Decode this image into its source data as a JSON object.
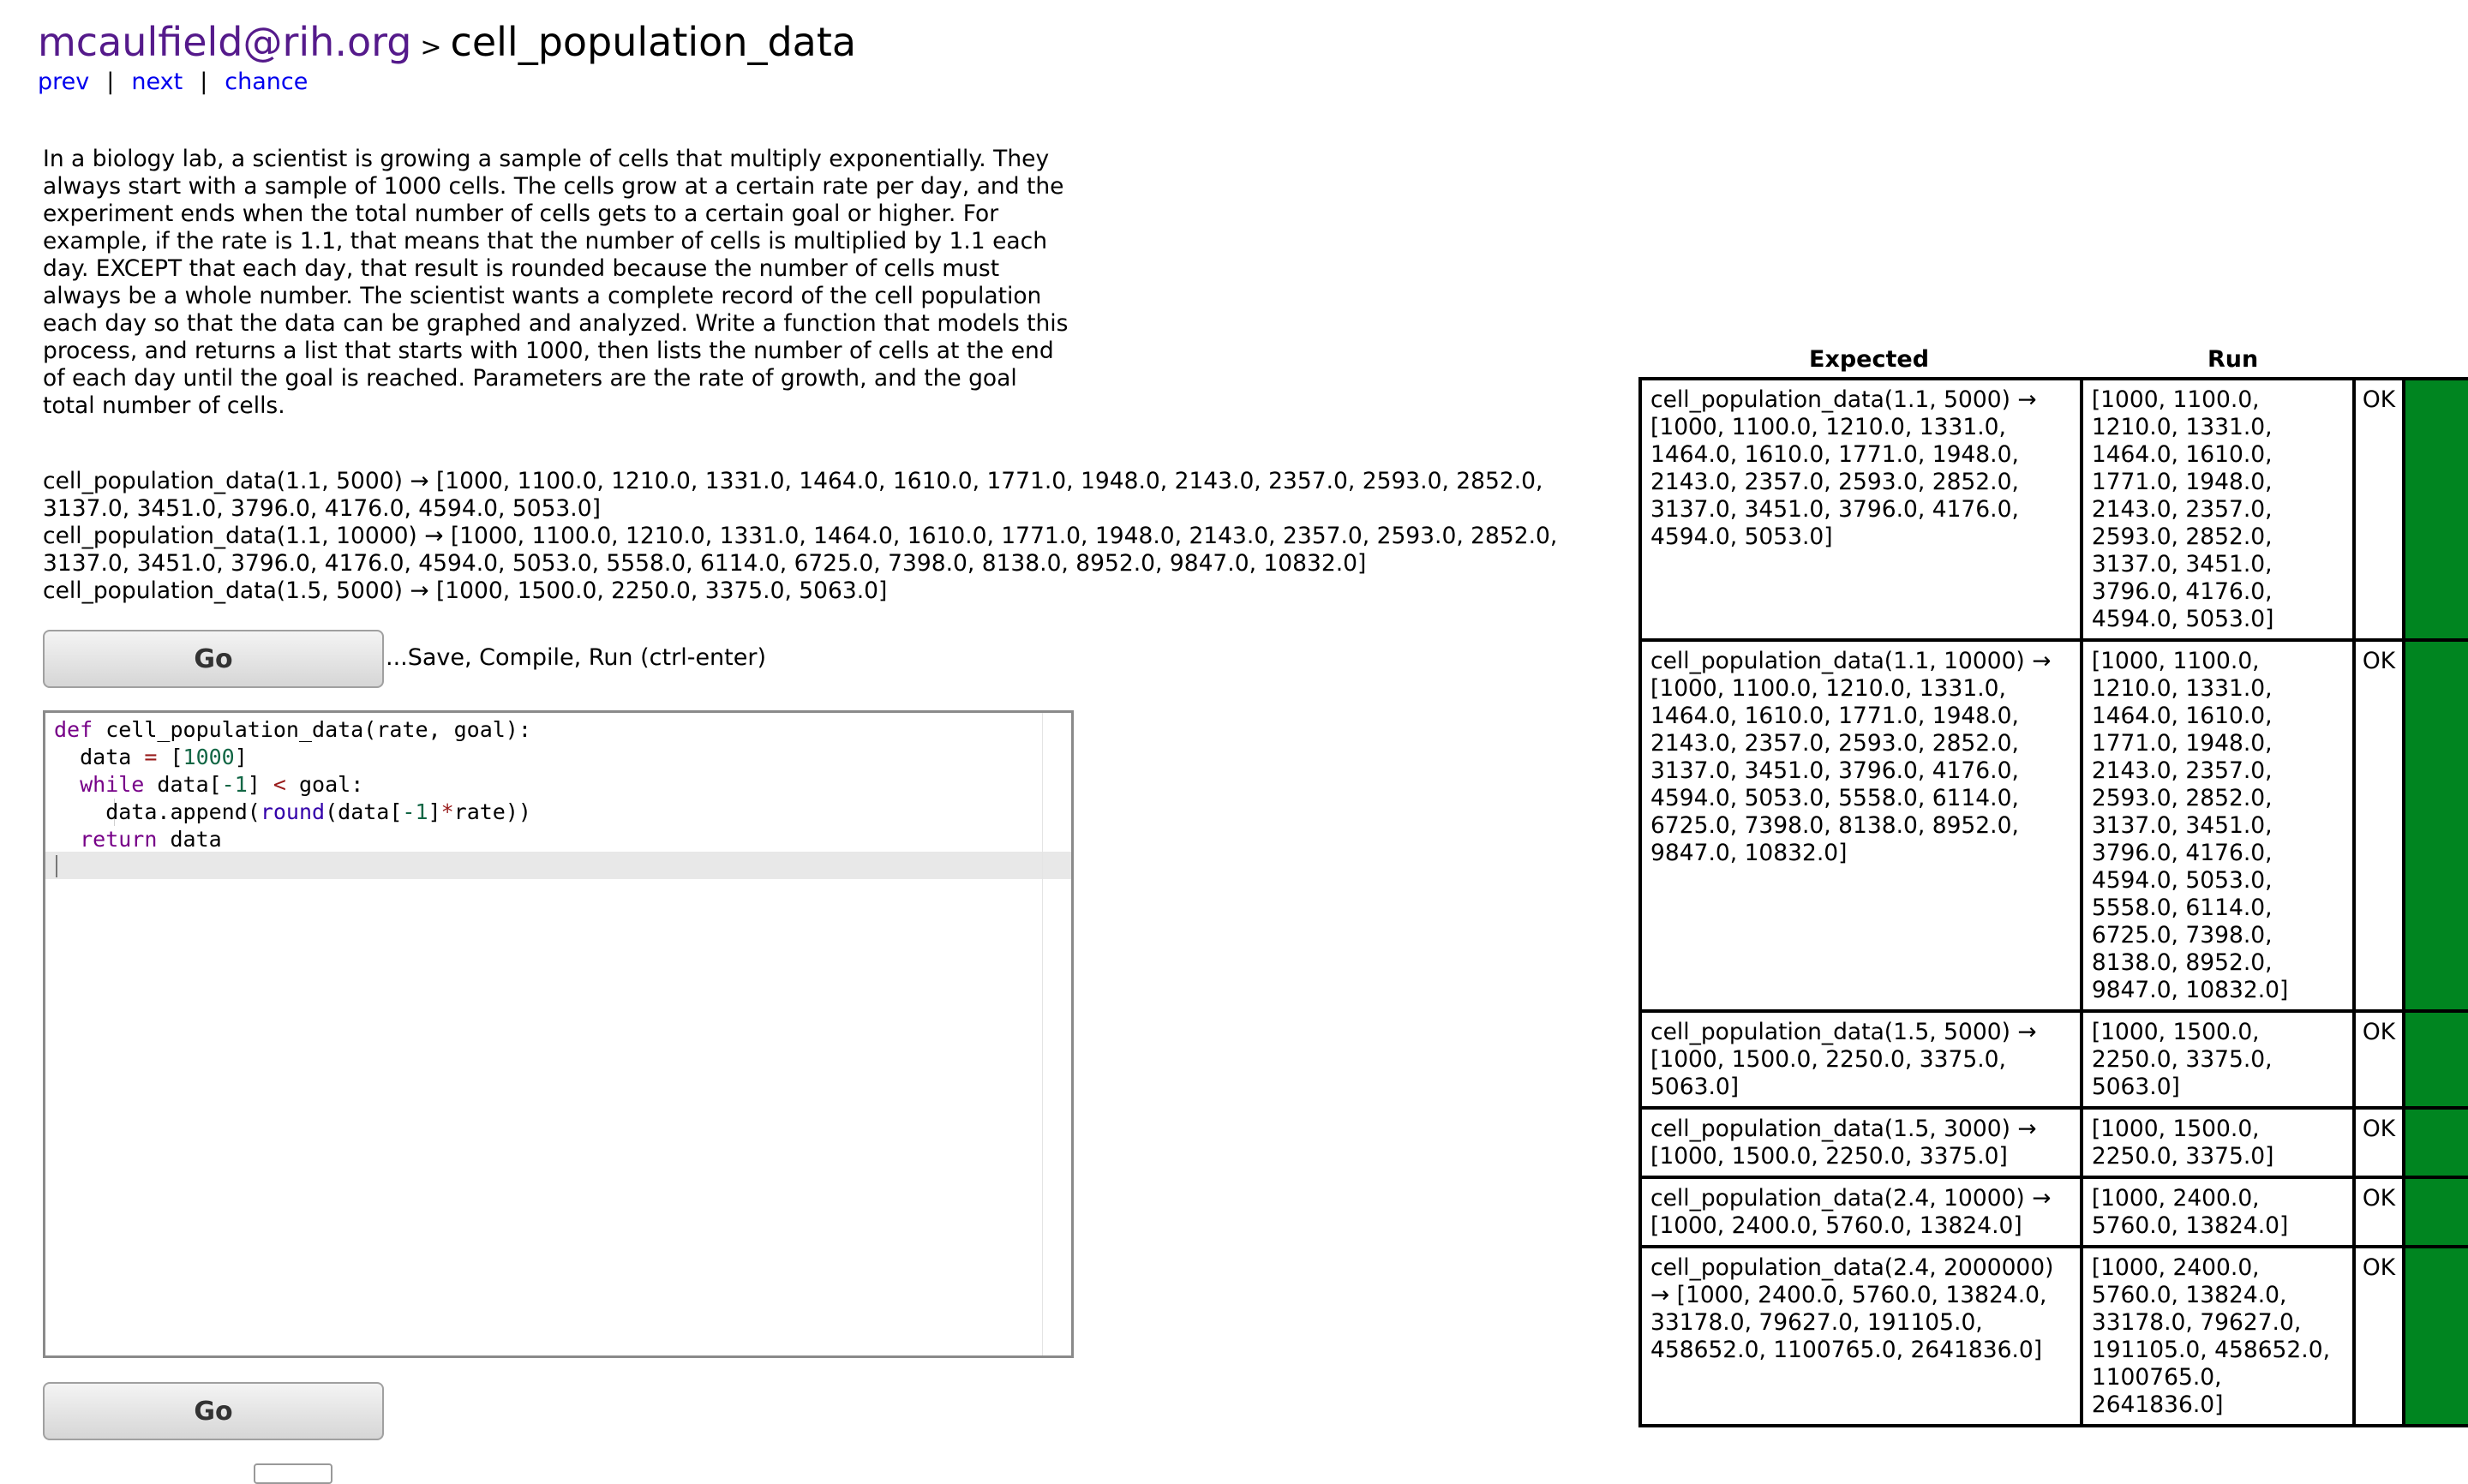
{
  "header": {
    "user": "mcaulfield@rih.org",
    "separator": ">",
    "page_title": "cell_population_data"
  },
  "nav": {
    "prev": "prev",
    "divider": "|",
    "next": "next",
    "chance": "chance"
  },
  "description": "In a biology lab, a scientist is growing a sample of cells that multiply exponentially. They always start with a sample of 1000 cells. The cells grow at a certain rate per day, and the experiment ends when the total number of cells gets to a certain goal or higher. For example, if the rate is 1.1, that means that the number of cells is multiplied by 1.1 each day. EXCEPT that each day, that result is rounded because the number of cells must always be a whole number. The scientist wants a complete record of the cell population each day so that the data can be graphed and analyzed. Write a function that models this process, and returns a list that starts with 1000, then lists the number of cells at the end of each day until the goal is reached. Parameters are the rate of growth, and the goal total number of cells.",
  "examples": [
    "cell_population_data(1.1, 5000) → [1000, 1100.0, 1210.0, 1331.0, 1464.0, 1610.0, 1771.0, 1948.0, 2143.0, 2357.0, 2593.0, 2852.0, 3137.0, 3451.0, 3796.0, 4176.0, 4594.0, 5053.0]",
    "cell_population_data(1.1, 10000) → [1000, 1100.0, 1210.0, 1331.0, 1464.0, 1610.0, 1771.0, 1948.0, 2143.0, 2357.0, 2593.0, 2852.0, 3137.0, 3451.0, 3796.0, 4176.0, 4594.0, 5053.0, 5558.0, 6114.0, 6725.0, 7398.0, 8138.0, 8952.0, 9847.0, 10832.0]",
    "cell_population_data(1.5, 5000) → [1000, 1500.0, 2250.0, 3375.0, 5063.0]"
  ],
  "go_button_label": "Go",
  "go_hint": "...Save, Compile, Run (ctrl-enter)",
  "code": {
    "def_kw": "def",
    "signature": " cell_population_data(rate, goal):",
    "line2_var": "  data ",
    "line2_eq": "=",
    "line2_open": " [",
    "line2_num": "1000",
    "line2_close": "]",
    "while_kw": "  while",
    "line3_a": " data[",
    "line3_neg1": "-1",
    "line3_b": "] ",
    "line3_lt": "<",
    "line3_c": " goal:",
    "line4_a": "    data.append(",
    "line4_round": "round",
    "line4_b": "(data[",
    "line4_neg1": "-1",
    "line4_c": "]",
    "line4_mul": "*",
    "line4_d": "rate))",
    "return_kw": "  return",
    "line5_rest": " data"
  },
  "results": {
    "header_expected": "Expected",
    "header_run": "Run",
    "rows": [
      {
        "expected": "cell_population_data(1.1, 5000) → [1000, 1100.0, 1210.0, 1331.0, 1464.0, 1610.0, 1771.0, 1948.0, 2143.0, 2357.0, 2593.0, 2852.0, 3137.0, 3451.0, 3796.0, 4176.0, 4594.0, 5053.0]",
        "run": "[1000, 1100.0, 1210.0, 1331.0, 1464.0, 1610.0, 1771.0, 1948.0, 2143.0, 2357.0, 2593.0, 2852.0, 3137.0, 3451.0, 3796.0, 4176.0, 4594.0, 5053.0]",
        "status": "OK"
      },
      {
        "expected": "cell_population_data(1.1, 10000) → [1000, 1100.0, 1210.0, 1331.0, 1464.0, 1610.0, 1771.0, 1948.0, 2143.0, 2357.0, 2593.0, 2852.0, 3137.0, 3451.0, 3796.0, 4176.0, 4594.0, 5053.0, 5558.0, 6114.0, 6725.0, 7398.0, 8138.0, 8952.0, 9847.0, 10832.0]",
        "run": "[1000, 1100.0, 1210.0, 1331.0, 1464.0, 1610.0, 1771.0, 1948.0, 2143.0, 2357.0, 2593.0, 2852.0, 3137.0, 3451.0, 3796.0, 4176.0, 4594.0, 5053.0, 5558.0, 6114.0, 6725.0, 7398.0, 8138.0, 8952.0, 9847.0, 10832.0]",
        "status": "OK"
      },
      {
        "expected": "cell_population_data(1.5, 5000) → [1000, 1500.0, 2250.0, 3375.0, 5063.0]",
        "run": "[1000, 1500.0, 2250.0, 3375.0, 5063.0]",
        "status": "OK"
      },
      {
        "expected": "cell_population_data(1.5, 3000) → [1000, 1500.0, 2250.0, 3375.0]",
        "run": "[1000, 1500.0, 2250.0, 3375.0]",
        "status": "OK"
      },
      {
        "expected": "cell_population_data(2.4, 10000) → [1000, 2400.0, 5760.0, 13824.0]",
        "run": "[1000, 2400.0, 5760.0, 13824.0]",
        "status": "OK"
      },
      {
        "expected": "cell_population_data(2.4, 2000000) → [1000, 2400.0, 5760.0, 13824.0, 33178.0, 79627.0, 191105.0, 458652.0, 1100765.0, 2641836.0]",
        "run": "[1000, 2400.0, 5760.0, 13824.0, 33178.0, 79627.0, 191105.0, 458652.0, 1100765.0, 2641836.0]",
        "status": "OK"
      }
    ],
    "pass_color": "#008520"
  }
}
